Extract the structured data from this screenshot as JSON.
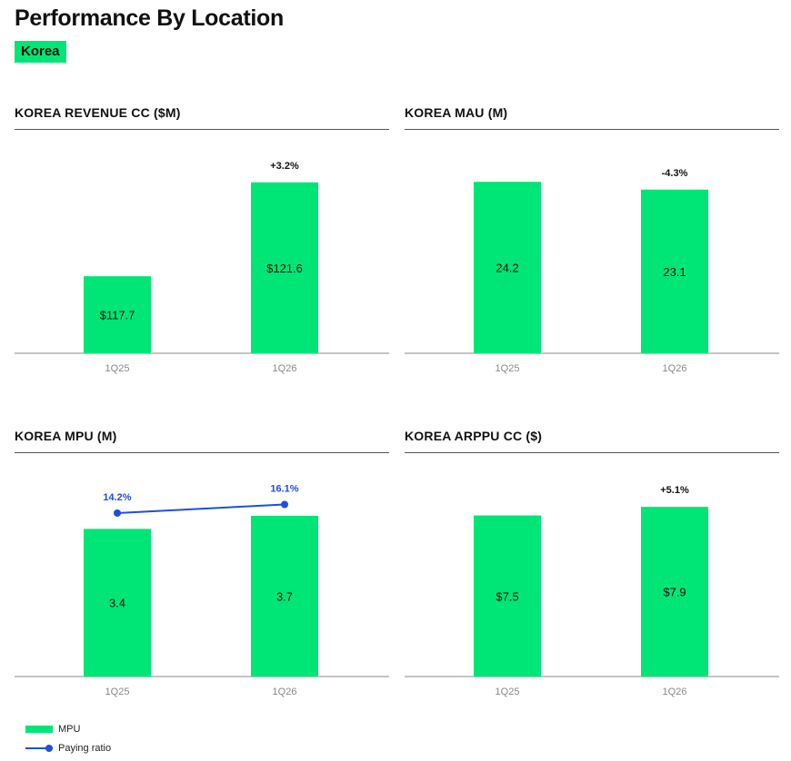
{
  "header": {
    "title": "Performance By Location",
    "region": "Korea"
  },
  "colors": {
    "bar": "#00e676",
    "line": "#1e4fe0",
    "text": "#111111",
    "axis": "#888888"
  },
  "chart_data": [
    {
      "type": "bar",
      "title": "KOREA REVENUE CC ($M)",
      "categories": [
        "1Q25",
        "1Q26"
      ],
      "values": [
        117.7,
        121.6
      ],
      "value_labels": [
        "$117.7",
        "$121.6"
      ],
      "change_label": "+3.2%",
      "ylim": [
        114.5,
        122.8
      ]
    },
    {
      "type": "bar",
      "title": "KOREA MAU (M)",
      "categories": [
        "1Q25",
        "1Q26"
      ],
      "values": [
        24.2,
        23.1
      ],
      "value_labels": [
        "24.2",
        "23.1"
      ],
      "change_label": "-4.3%",
      "ylim": [
        0,
        28.2
      ]
    },
    {
      "type": "bar",
      "title": "KOREA MPU (M)",
      "categories": [
        "1Q25",
        "1Q26"
      ],
      "values": [
        3.4,
        3.7
      ],
      "value_labels": [
        "3.4",
        "3.7"
      ],
      "ylim": [
        0,
        4.6
      ],
      "series": [
        {
          "name": "MPU",
          "values": [
            3.4,
            3.7
          ]
        },
        {
          "name": "Paying ratio",
          "values": [
            14.2,
            16.1
          ],
          "value_labels": [
            "14.2%",
            "16.1%"
          ],
          "type": "line"
        }
      ],
      "legend": [
        "MPU",
        "Paying ratio"
      ]
    },
    {
      "type": "bar",
      "title": "KOREA ARPPU CC ($)",
      "categories": [
        "1Q25",
        "1Q26"
      ],
      "values": [
        7.5,
        7.9
      ],
      "value_labels": [
        "$7.5",
        "$7.9"
      ],
      "change_label": "+5.1%",
      "ylim": [
        0,
        9.3
      ]
    }
  ]
}
